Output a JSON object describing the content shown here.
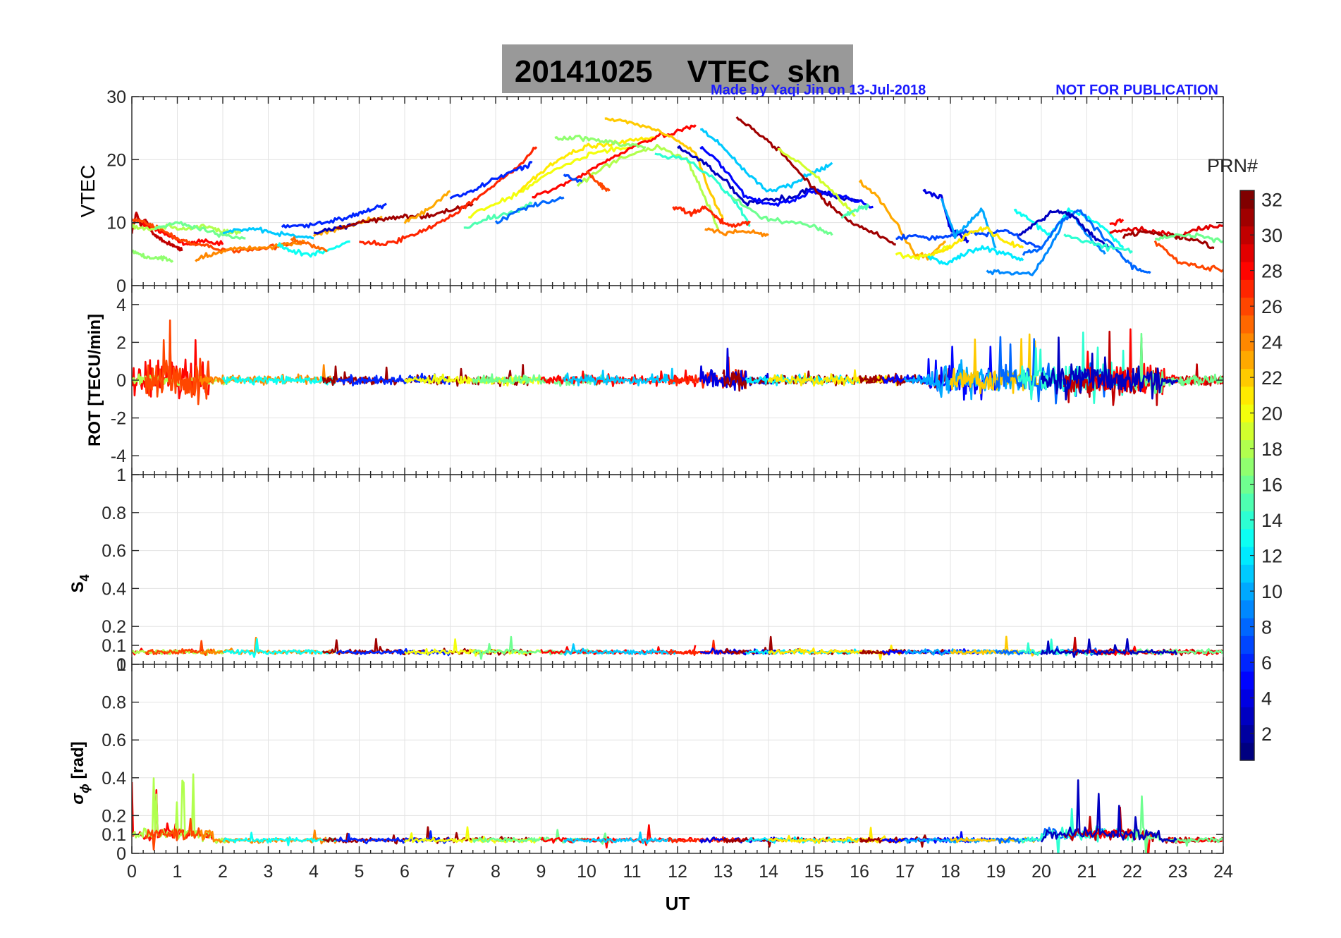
{
  "header": {
    "title": "20141025    VTEC  skn",
    "credit_left": "Made by Yaqi Jin on 13-Jul-2018",
    "credit_right": "NOT FOR PUBLICATION"
  },
  "colorbar": {
    "label": "PRN#",
    "ticks": [
      2,
      4,
      6,
      8,
      10,
      12,
      14,
      16,
      18,
      20,
      22,
      24,
      26,
      28,
      30,
      32
    ],
    "range": [
      1,
      32
    ],
    "colormap": "jet"
  },
  "chart_data": [
    {
      "type": "line",
      "panel": "vtec",
      "ylabel": "VTEC",
      "xlim": [
        0,
        24
      ],
      "ylim": [
        0,
        30
      ],
      "yticks": [
        0,
        10,
        20,
        30
      ],
      "grid": true,
      "series": [
        {
          "prn": 30,
          "x": [
            0,
            0.1,
            0.2,
            0.3,
            0.5,
            0.7,
            0.9,
            1.1
          ],
          "y": [
            8.5,
            11.5,
            9.5,
            10.5,
            8,
            7,
            6.5,
            5.5
          ]
        },
        {
          "prn": 28,
          "x": [
            0.2,
            0.5,
            0.8,
            1.2,
            1.5,
            2
          ],
          "y": [
            10,
            9,
            8,
            6.5,
            7,
            6.5
          ]
        },
        {
          "prn": 26,
          "x": [
            0,
            0.3,
            0.6,
            1,
            1.4,
            1.8,
            2.4,
            3,
            3.6
          ],
          "y": [
            10.5,
            10,
            9,
            7.5,
            6.5,
            6,
            5.5,
            6,
            7
          ]
        },
        {
          "prn": 18,
          "x": [
            0,
            0.4,
            0.8,
            1.2,
            1.6,
            2,
            2.4
          ],
          "y": [
            9.5,
            9,
            9.5,
            9,
            9.5,
            8.5,
            8.5
          ]
        },
        {
          "prn": 17,
          "x": [
            0,
            0.3,
            0.6,
            0.9
          ],
          "y": [
            5.5,
            4.5,
            4.5,
            4
          ]
        },
        {
          "prn": 16,
          "x": [
            0.5,
            1,
            1.5,
            2,
            2.5
          ],
          "y": [
            9,
            10,
            9,
            8,
            7.5
          ]
        },
        {
          "prn": 24,
          "x": [
            1.4,
            1.8,
            2.3,
            2.8,
            3.3,
            3.8
          ],
          "y": [
            4,
            5,
            6,
            6,
            6.5,
            7
          ]
        },
        {
          "prn": 11,
          "x": [
            2,
            2.5,
            3,
            3.5,
            4
          ],
          "y": [
            8.5,
            9,
            8.5,
            8,
            7.5
          ]
        },
        {
          "prn": 13,
          "x": [
            3.2,
            3.5,
            3.9,
            4.3,
            4.8
          ],
          "y": [
            6.5,
            5.5,
            5,
            5.5,
            7
          ]
        },
        {
          "prn": 25,
          "x": [
            3.5,
            3.9,
            4.3
          ],
          "y": [
            7.5,
            6.5,
            5.5
          ]
        },
        {
          "prn": 6,
          "x": [
            3.3,
            3.8,
            4.3,
            4.8,
            5.2,
            5.6
          ],
          "y": [
            9.5,
            9.5,
            10,
            11,
            12,
            13
          ]
        },
        {
          "prn": 23,
          "x": [
            4,
            4.5,
            5,
            5.5
          ],
          "y": [
            8,
            9,
            10,
            11
          ]
        },
        {
          "prn": 3,
          "x": [
            4,
            4.5,
            5
          ],
          "y": [
            8.5,
            9,
            10
          ]
        },
        {
          "prn": 31,
          "x": [
            4.5,
            5,
            5.5,
            6,
            6.5,
            7,
            7.5
          ],
          "y": [
            9,
            10,
            10.5,
            11,
            11,
            12,
            13
          ]
        },
        {
          "prn": 27,
          "x": [
            5,
            5.5,
            6,
            6.5,
            7,
            7.5,
            8,
            8.5,
            8.9
          ],
          "y": [
            7,
            6.5,
            7.5,
            9,
            11,
            13.5,
            16,
            19,
            22
          ]
        },
        {
          "prn": 23,
          "x": [
            6,
            6.5,
            7
          ],
          "y": [
            10,
            12,
            15
          ]
        },
        {
          "prn": 6,
          "x": [
            7,
            7.5,
            8,
            8.5,
            8.8
          ],
          "y": [
            14,
            15,
            17,
            18.5,
            19.5
          ]
        },
        {
          "prn": 15,
          "x": [
            7.3,
            7.8,
            8.3,
            8.8
          ],
          "y": [
            9,
            10.5,
            11.5,
            13
          ]
        },
        {
          "prn": 20,
          "x": [
            7.4,
            8,
            8.6,
            9.2,
            9.8,
            10.4,
            11
          ],
          "y": [
            11,
            13,
            15,
            18,
            20,
            21.5,
            22
          ]
        },
        {
          "prn": 8,
          "x": [
            8,
            8.5,
            9,
            9.5
          ],
          "y": [
            10,
            12,
            13,
            14
          ]
        },
        {
          "prn": 21,
          "x": [
            8.5,
            9,
            9.5,
            10,
            10.5,
            11,
            11.5
          ],
          "y": [
            15,
            18,
            20.5,
            22,
            22.5,
            23,
            23.5
          ]
        },
        {
          "prn": 28,
          "x": [
            8.8,
            9.5,
            10,
            10.5,
            11,
            11.5,
            12,
            12.4
          ],
          "y": [
            14,
            16,
            18,
            20,
            22,
            23.5,
            24.5,
            25.5
          ]
        },
        {
          "prn": 17,
          "x": [
            9.3,
            9.8,
            10.3,
            10.8,
            11.3
          ],
          "y": [
            23.5,
            23.5,
            23,
            22.5,
            22
          ]
        },
        {
          "prn": 22,
          "x": [
            10.4,
            10.9,
            11.4,
            11.9,
            12.4,
            12.7,
            13
          ],
          "y": [
            26.5,
            26,
            25,
            23.5,
            21,
            15,
            10.5
          ]
        },
        {
          "prn": 18,
          "x": [
            9.8,
            10.4,
            11,
            11.6,
            12.2,
            12.6,
            12.9
          ],
          "y": [
            16,
            19,
            21,
            22,
            20,
            14,
            9
          ]
        },
        {
          "prn": 26,
          "x": [
            10,
            10.3,
            10.5
          ],
          "y": [
            18,
            16,
            15
          ]
        },
        {
          "prn": 7,
          "x": [
            9.5,
            9.9
          ],
          "y": [
            17.5,
            16.5
          ]
        },
        {
          "prn": 14,
          "x": [
            11.5,
            12.2,
            12.8,
            13.3,
            13.6
          ],
          "y": [
            21,
            20,
            17,
            13,
            9.5
          ]
        },
        {
          "prn": 3,
          "x": [
            12,
            12.5,
            13,
            13.5,
            14,
            14.5,
            15,
            15.5,
            16
          ],
          "y": [
            22,
            20,
            17,
            13,
            13.5,
            14,
            15.5,
            14,
            13.5
          ]
        },
        {
          "prn": 5,
          "x": [
            12.5,
            13,
            13.5,
            14,
            14.5,
            15,
            15.5,
            16.3
          ],
          "y": [
            22,
            19,
            14,
            13,
            13.5,
            15,
            14.5,
            12.5
          ]
        },
        {
          "prn": 11,
          "x": [
            12.5,
            13,
            13.5,
            14,
            14.5,
            15,
            15.4
          ],
          "y": [
            25,
            22,
            18,
            15,
            16,
            18,
            19.5
          ]
        },
        {
          "prn": 27,
          "x": [
            11.9,
            12.3,
            12.6,
            12.9,
            13.2,
            13.6
          ],
          "y": [
            12.5,
            11.5,
            12.5,
            10.5,
            9.5,
            10
          ]
        },
        {
          "prn": 31,
          "x": [
            13.3,
            13.8,
            14.3,
            14.8,
            15.3,
            15.8,
            16.3,
            16.8
          ],
          "y": [
            26.5,
            24,
            21,
            17,
            13,
            10,
            8.5,
            6.5
          ]
        },
        {
          "prn": 24,
          "x": [
            12.6,
            13.1,
            13.6,
            14
          ],
          "y": [
            9,
            8.5,
            8.5,
            8
          ]
        },
        {
          "prn": 16,
          "x": [
            13.2,
            13.8,
            14.4,
            15,
            15.4
          ],
          "y": [
            14,
            11,
            10,
            9.5,
            8
          ]
        },
        {
          "prn": 19,
          "x": [
            14.2,
            14.8,
            15.4,
            15.9
          ],
          "y": [
            21.5,
            19,
            15,
            11
          ]
        },
        {
          "prn": 15,
          "x": [
            15.6,
            15.9,
            16.2
          ],
          "y": [
            11,
            12,
            12.5
          ]
        },
        {
          "prn": 23,
          "x": [
            16,
            16.4,
            16.8,
            17.2,
            17.5,
            17.9
          ],
          "y": [
            16.5,
            14,
            10,
            5,
            4.5,
            7
          ]
        },
        {
          "prn": 20,
          "x": [
            16.8,
            17.2,
            17.6,
            18
          ],
          "y": [
            5,
            4.5,
            5,
            6.5
          ]
        },
        {
          "prn": 7,
          "x": [
            16.8,
            17.2,
            17.6,
            18,
            18.4,
            18.8,
            19.2,
            19.6,
            20
          ],
          "y": [
            7.5,
            8,
            7.5,
            8,
            8.5,
            8,
            9,
            7,
            6
          ]
        },
        {
          "prn": 4,
          "x": [
            17.4,
            17.8,
            18,
            18.2,
            18.4
          ],
          "y": [
            15,
            14,
            9,
            8,
            7
          ]
        },
        {
          "prn": 10,
          "x": [
            17.8,
            18.1,
            18.4,
            18.7,
            19
          ],
          "y": [
            14,
            8,
            10,
            12,
            6
          ]
        },
        {
          "prn": 12,
          "x": [
            17.5,
            17.9,
            18.3,
            18.7,
            19.2,
            19.6
          ],
          "y": [
            4.5,
            3.5,
            5,
            6,
            5,
            4
          ]
        },
        {
          "prn": 21,
          "x": [
            17.6,
            18,
            18.4,
            18.8,
            19.2,
            19.6
          ],
          "y": [
            5,
            6,
            8.5,
            9,
            7,
            6
          ]
        },
        {
          "prn": 9,
          "x": [
            18.8,
            19.3,
            19.8,
            20.2,
            20.6,
            21,
            21.4
          ],
          "y": [
            2.5,
            2,
            1.8,
            6,
            12,
            8,
            5
          ]
        },
        {
          "prn": 13,
          "x": [
            19.4,
            19.8,
            20.2,
            20.6,
            21,
            21.4,
            21.8
          ],
          "y": [
            12,
            10,
            8,
            12,
            11,
            9,
            6
          ]
        },
        {
          "prn": 8,
          "x": [
            19.6,
            20,
            20.4,
            20.8,
            21.2,
            21.6,
            22,
            22.4
          ],
          "y": [
            5,
            6,
            10,
            12,
            9,
            6,
            3,
            2
          ]
        },
        {
          "prn": 3,
          "x": [
            19.5,
            19.9,
            20.3,
            20.7,
            21.1,
            21.5
          ],
          "y": [
            8,
            10,
            12,
            11,
            8,
            6
          ]
        },
        {
          "prn": 14,
          "x": [
            20.5,
            21,
            21.5,
            22
          ],
          "y": [
            8,
            7,
            6,
            5.5
          ]
        },
        {
          "prn": 29,
          "x": [
            21.5,
            22,
            22.5,
            23,
            23.5,
            24
          ],
          "y": [
            8.5,
            9,
            8.5,
            8,
            9,
            9.5
          ]
        },
        {
          "prn": 31,
          "x": [
            21.8,
            22.3,
            22.8,
            23.3,
            23.8
          ],
          "y": [
            8,
            8.5,
            8,
            7.5,
            6
          ]
        },
        {
          "prn": 26,
          "x": [
            22.5,
            23,
            23.5,
            24
          ],
          "y": [
            7,
            4,
            3,
            2.5
          ]
        },
        {
          "prn": 16,
          "x": [
            22.5,
            23,
            23.5,
            24
          ],
          "y": [
            7.5,
            8,
            8,
            7
          ]
        },
        {
          "prn": 28,
          "x": [
            21.5,
            21.8
          ],
          "y": [
            9.5,
            10.5
          ]
        }
      ]
    },
    {
      "type": "line",
      "panel": "rot",
      "ylabel": "ROT [TECU/min]",
      "xlim": [
        0,
        24
      ],
      "ylim": [
        -5,
        5
      ],
      "yticks": [
        -4,
        -2,
        0,
        2,
        4
      ],
      "grid": true
    },
    {
      "type": "line",
      "panel": "s4",
      "ylabel": "S",
      "ylabel_sub": "4",
      "xlim": [
        0,
        24
      ],
      "ylim": [
        0,
        1
      ],
      "yticks": [
        0,
        0.1,
        0.2,
        0.4,
        0.6,
        0.8,
        1
      ],
      "grid": true
    },
    {
      "type": "line",
      "panel": "sigma",
      "ylabel": "σ",
      "ylabel_sub": "ϕ",
      "ylabel_unit": " [rad]",
      "xlim": [
        0,
        24
      ],
      "ylim": [
        0,
        1
      ],
      "yticks": [
        0,
        0.1,
        0.2,
        0.4,
        0.6,
        0.8,
        1
      ],
      "xticks": [
        0,
        1,
        2,
        3,
        4,
        5,
        6,
        7,
        8,
        9,
        10,
        11,
        12,
        13,
        14,
        15,
        16,
        17,
        18,
        19,
        20,
        21,
        22,
        23,
        24
      ],
      "xlabel": "UT",
      "grid": true
    }
  ]
}
